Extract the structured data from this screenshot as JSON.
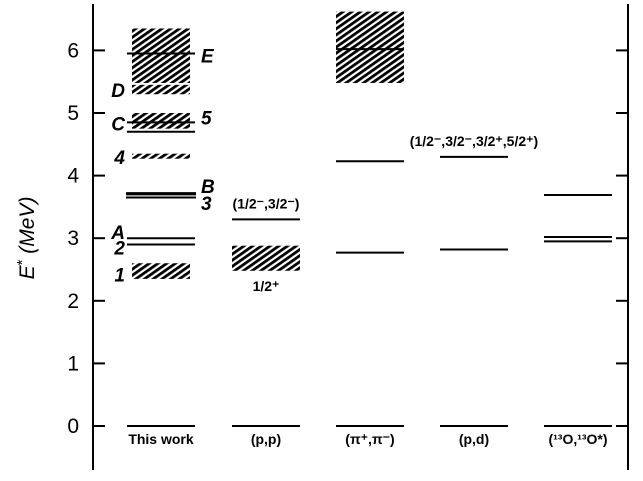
{
  "chart_data": {
    "type": "level-scheme",
    "ylabel": "E* (MeV)",
    "ylim": [
      -0.3,
      6.65
    ],
    "y_ticks": [
      "0",
      "1",
      "2",
      "3",
      "4",
      "5",
      "6"
    ],
    "y_tick_values": [
      0,
      1,
      2,
      3,
      4,
      5,
      6
    ],
    "grid": false,
    "columns": [
      {
        "label": "This work",
        "levels": [
          0,
          2.9,
          3.0,
          3.65,
          3.7,
          3.72,
          4.7,
          4.85,
          5.95
        ],
        "bands": [
          [
            2.35,
            2.6
          ],
          [
            4.27,
            4.35
          ],
          [
            4.75,
            5.0
          ],
          [
            5.3,
            5.45
          ],
          [
            5.48,
            6.35
          ]
        ],
        "level_labels": [
          {
            "text": "1",
            "e": 2.42
          },
          {
            "text": "2",
            "e": 2.85
          },
          {
            "text": "A",
            "e": 3.1
          },
          {
            "text": "3",
            "e": 3.56
          },
          {
            "text": "B",
            "e": 3.83
          },
          {
            "text": "4",
            "e": 4.3
          },
          {
            "text": "C",
            "e": 4.83
          },
          {
            "text": "5",
            "e": 4.93
          },
          {
            "text": "D",
            "e": 5.37
          },
          {
            "text": "E",
            "e": 5.92
          }
        ]
      },
      {
        "label": "(p,p)",
        "levels": [
          0,
          3.3
        ],
        "bands": [
          [
            2.48,
            2.88
          ]
        ],
        "annotations": [
          {
            "text": "(1/2⁻,3/2⁻)",
            "e": 3.38
          },
          {
            "text": "1/2⁺",
            "e": 2.22
          }
        ]
      },
      {
        "label": "(π⁺,π⁻)",
        "levels": [
          0,
          2.77,
          4.23,
          6.02
        ],
        "bands": [
          [
            5.48,
            6.62
          ]
        ]
      },
      {
        "label": "(p,d)",
        "levels": [
          0,
          2.82,
          4.3
        ],
        "bands": [],
        "annotations": [
          {
            "text": "(1/2⁻,3/2⁻,3/2⁺,5/2⁺)",
            "e": 4.38
          }
        ]
      },
      {
        "label": "(¹³O,¹³O*)",
        "levels": [
          0,
          2.95,
          3.02,
          3.69
        ],
        "bands": []
      }
    ]
  }
}
